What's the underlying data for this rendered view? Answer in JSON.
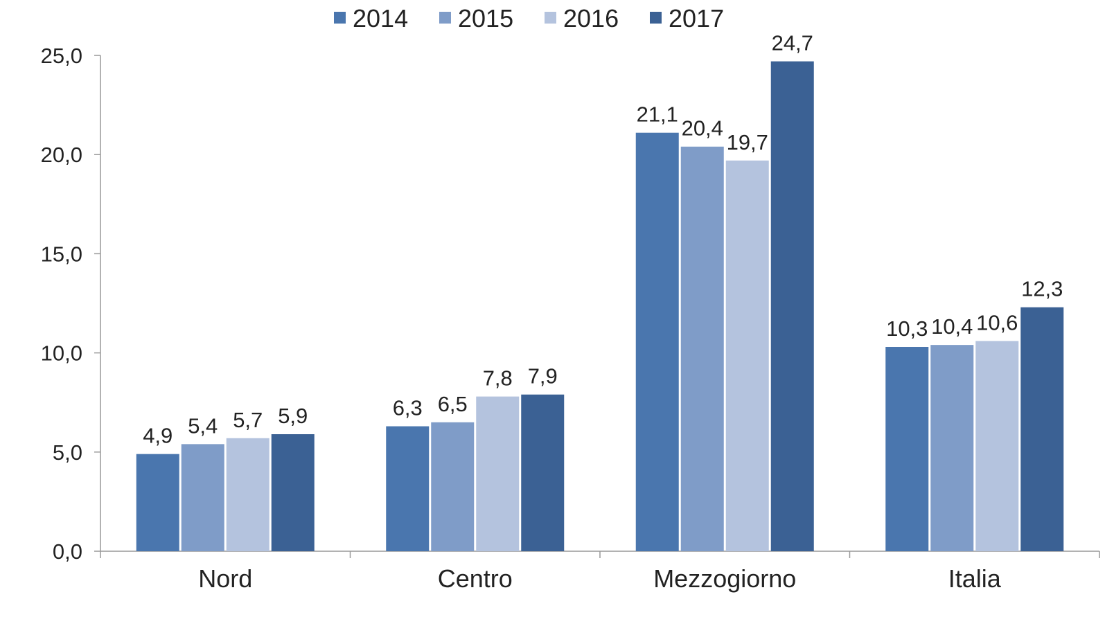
{
  "chart_data": {
    "type": "bar",
    "categories": [
      "Nord",
      "Centro",
      "Mezzogiorno",
      "Italia"
    ],
    "series": [
      {
        "name": "2014",
        "color": "#4a76ae",
        "values": [
          4.9,
          6.3,
          21.1,
          10.3
        ],
        "labels": [
          "4,9",
          "6,3",
          "21,1",
          "10,3"
        ]
      },
      {
        "name": "2015",
        "color": "#7f9cc8",
        "values": [
          5.4,
          6.5,
          20.4,
          10.4
        ],
        "labels": [
          "5,4",
          "6,5",
          "20,4",
          "10,4"
        ]
      },
      {
        "name": "2016",
        "color": "#b4c3de",
        "values": [
          5.7,
          7.8,
          19.7,
          10.6
        ],
        "labels": [
          "5,7",
          "7,8",
          "19,7",
          "10,6"
        ]
      },
      {
        "name": "2017",
        "color": "#3b6194",
        "values": [
          5.9,
          7.9,
          24.7,
          12.3
        ],
        "labels": [
          "5,9",
          "7,9",
          "24,7",
          "12,3"
        ]
      }
    ],
    "yticks": [
      "0,0",
      "5,0",
      "10,0",
      "15,0",
      "20,0",
      "25,0"
    ],
    "ylim": [
      0,
      25
    ],
    "grid": false,
    "legend_position": "top"
  }
}
